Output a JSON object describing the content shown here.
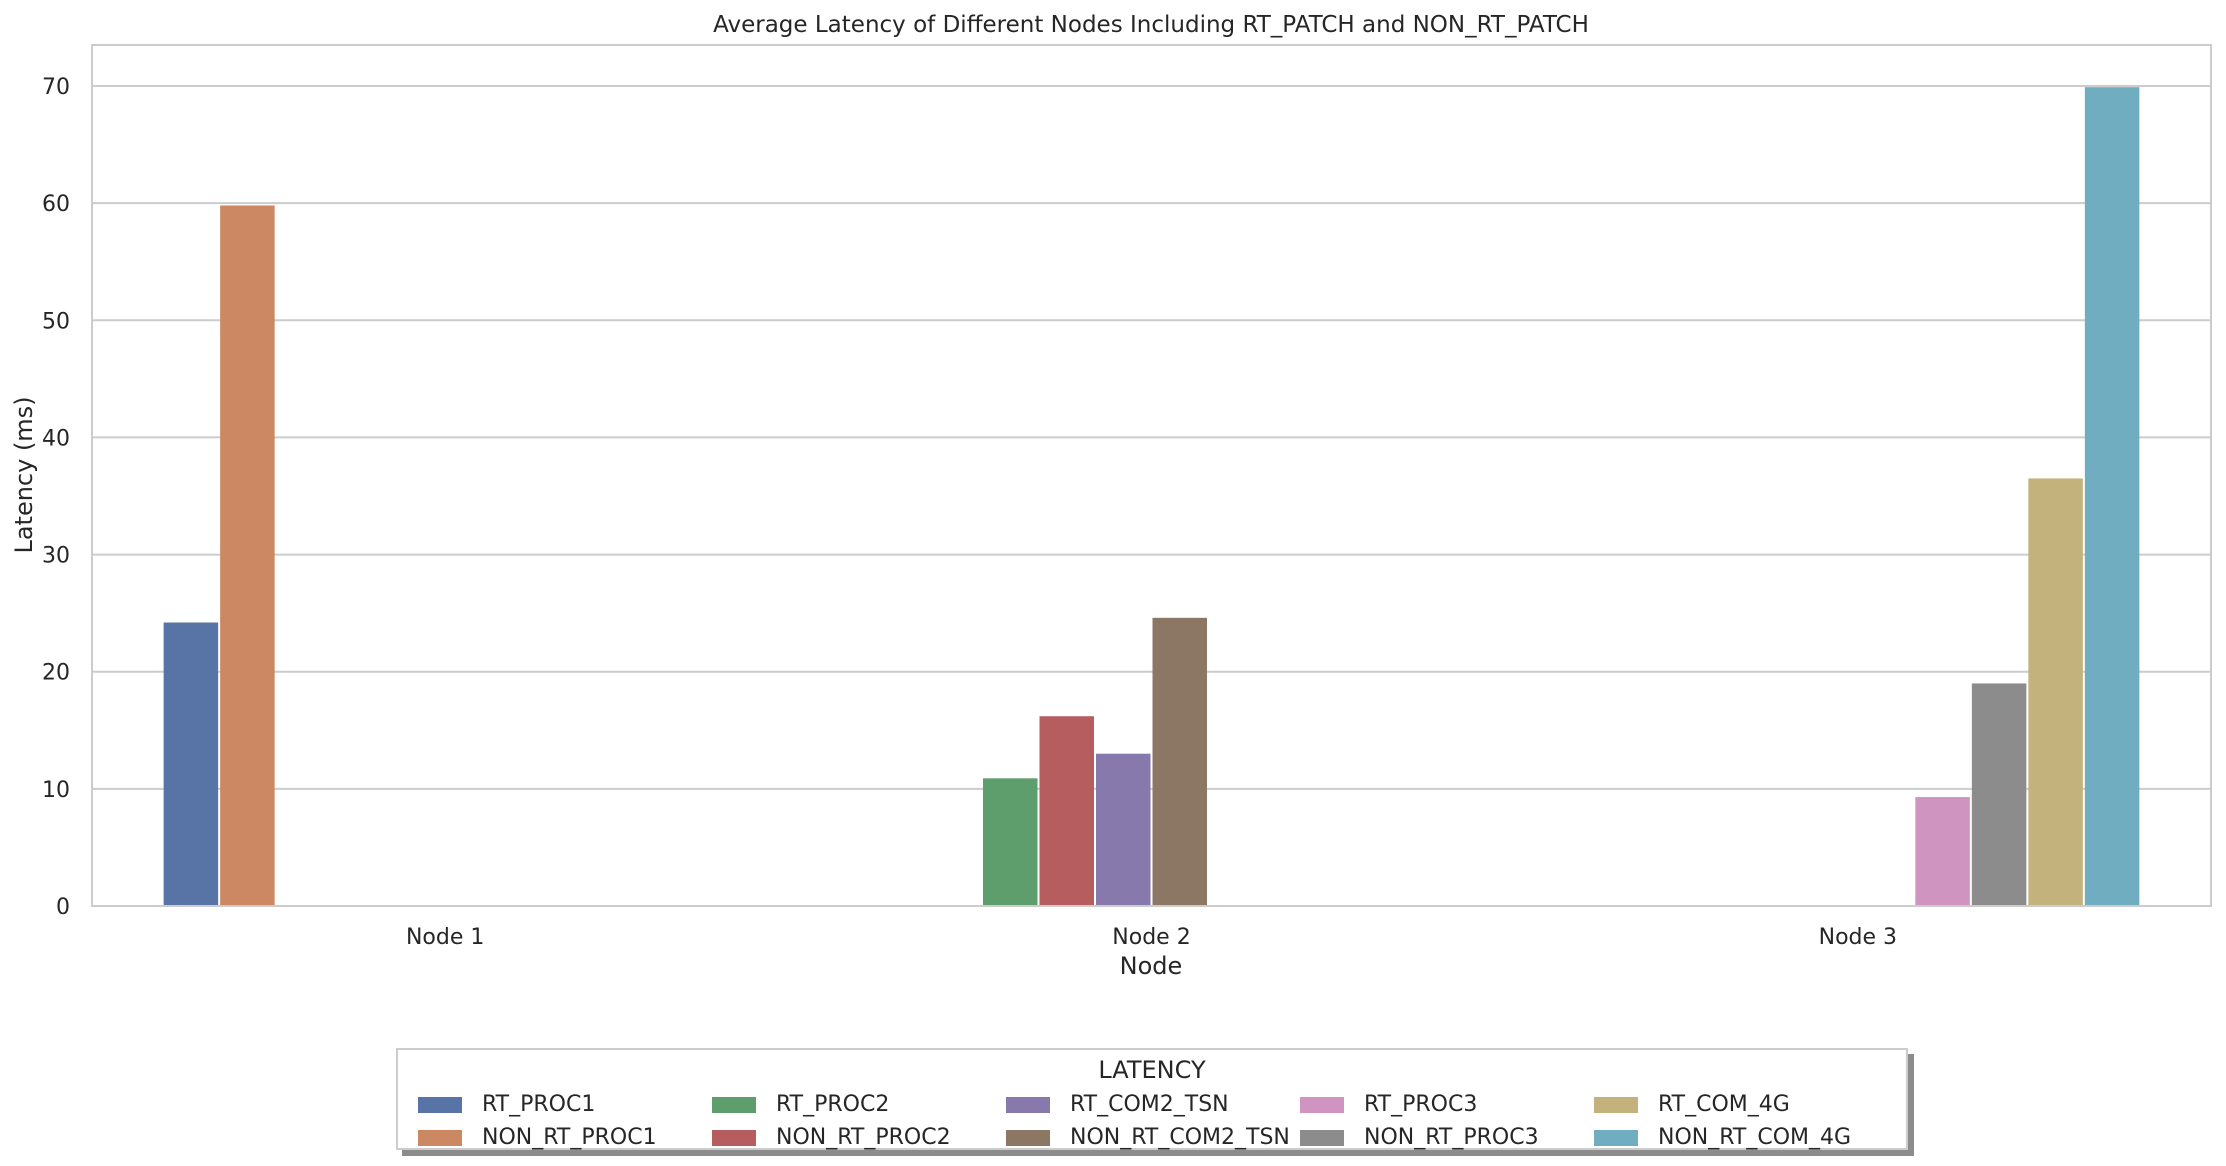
{
  "chart_data": {
    "type": "bar",
    "title": "Average Latency of Different Nodes Including RT_PATCH and NON_RT_PATCH",
    "xlabel": "Node",
    "ylabel": "Latency (ms)",
    "ylim": [
      0,
      73.5
    ],
    "yticks": [
      0,
      10,
      20,
      30,
      40,
      50,
      60,
      70
    ],
    "grid": "horizontal",
    "categories": [
      "Node 1",
      "Node 2",
      "Node 3"
    ],
    "series": [
      {
        "name": "RT_PROC1",
        "color": "#5874a6",
        "values": [
          24.2,
          null,
          null
        ]
      },
      {
        "name": "NON_RT_PROC1",
        "color": "#cb8862",
        "values": [
          59.8,
          null,
          null
        ]
      },
      {
        "name": "RT_PROC2",
        "color": "#5e9d6c",
        "values": [
          null,
          10.9,
          null
        ]
      },
      {
        "name": "NON_RT_PROC2",
        "color": "#b65d5f",
        "values": [
          null,
          16.2,
          null
        ]
      },
      {
        "name": "RT_COM2_TSN",
        "color": "#8879ac",
        "values": [
          null,
          13.0,
          null
        ]
      },
      {
        "name": "NON_RT_COM2_TSN",
        "color": "#8c7764",
        "values": [
          null,
          24.6,
          null
        ]
      },
      {
        "name": "RT_PROC3",
        "color": "#cf94bf",
        "values": [
          null,
          null,
          9.3
        ]
      },
      {
        "name": "NON_RT_PROC3",
        "color": "#8c8c8c",
        "values": [
          null,
          null,
          19.0
        ]
      },
      {
        "name": "RT_COM_4G",
        "color": "#c3b27c",
        "values": [
          null,
          null,
          36.5
        ]
      },
      {
        "name": "NON_RT_COM_4G",
        "color": "#70adc0",
        "values": [
          null,
          null,
          69.9
        ]
      }
    ],
    "legend": {
      "title": "LATENCY",
      "placement": "bottom-center",
      "columns": 5
    }
  }
}
